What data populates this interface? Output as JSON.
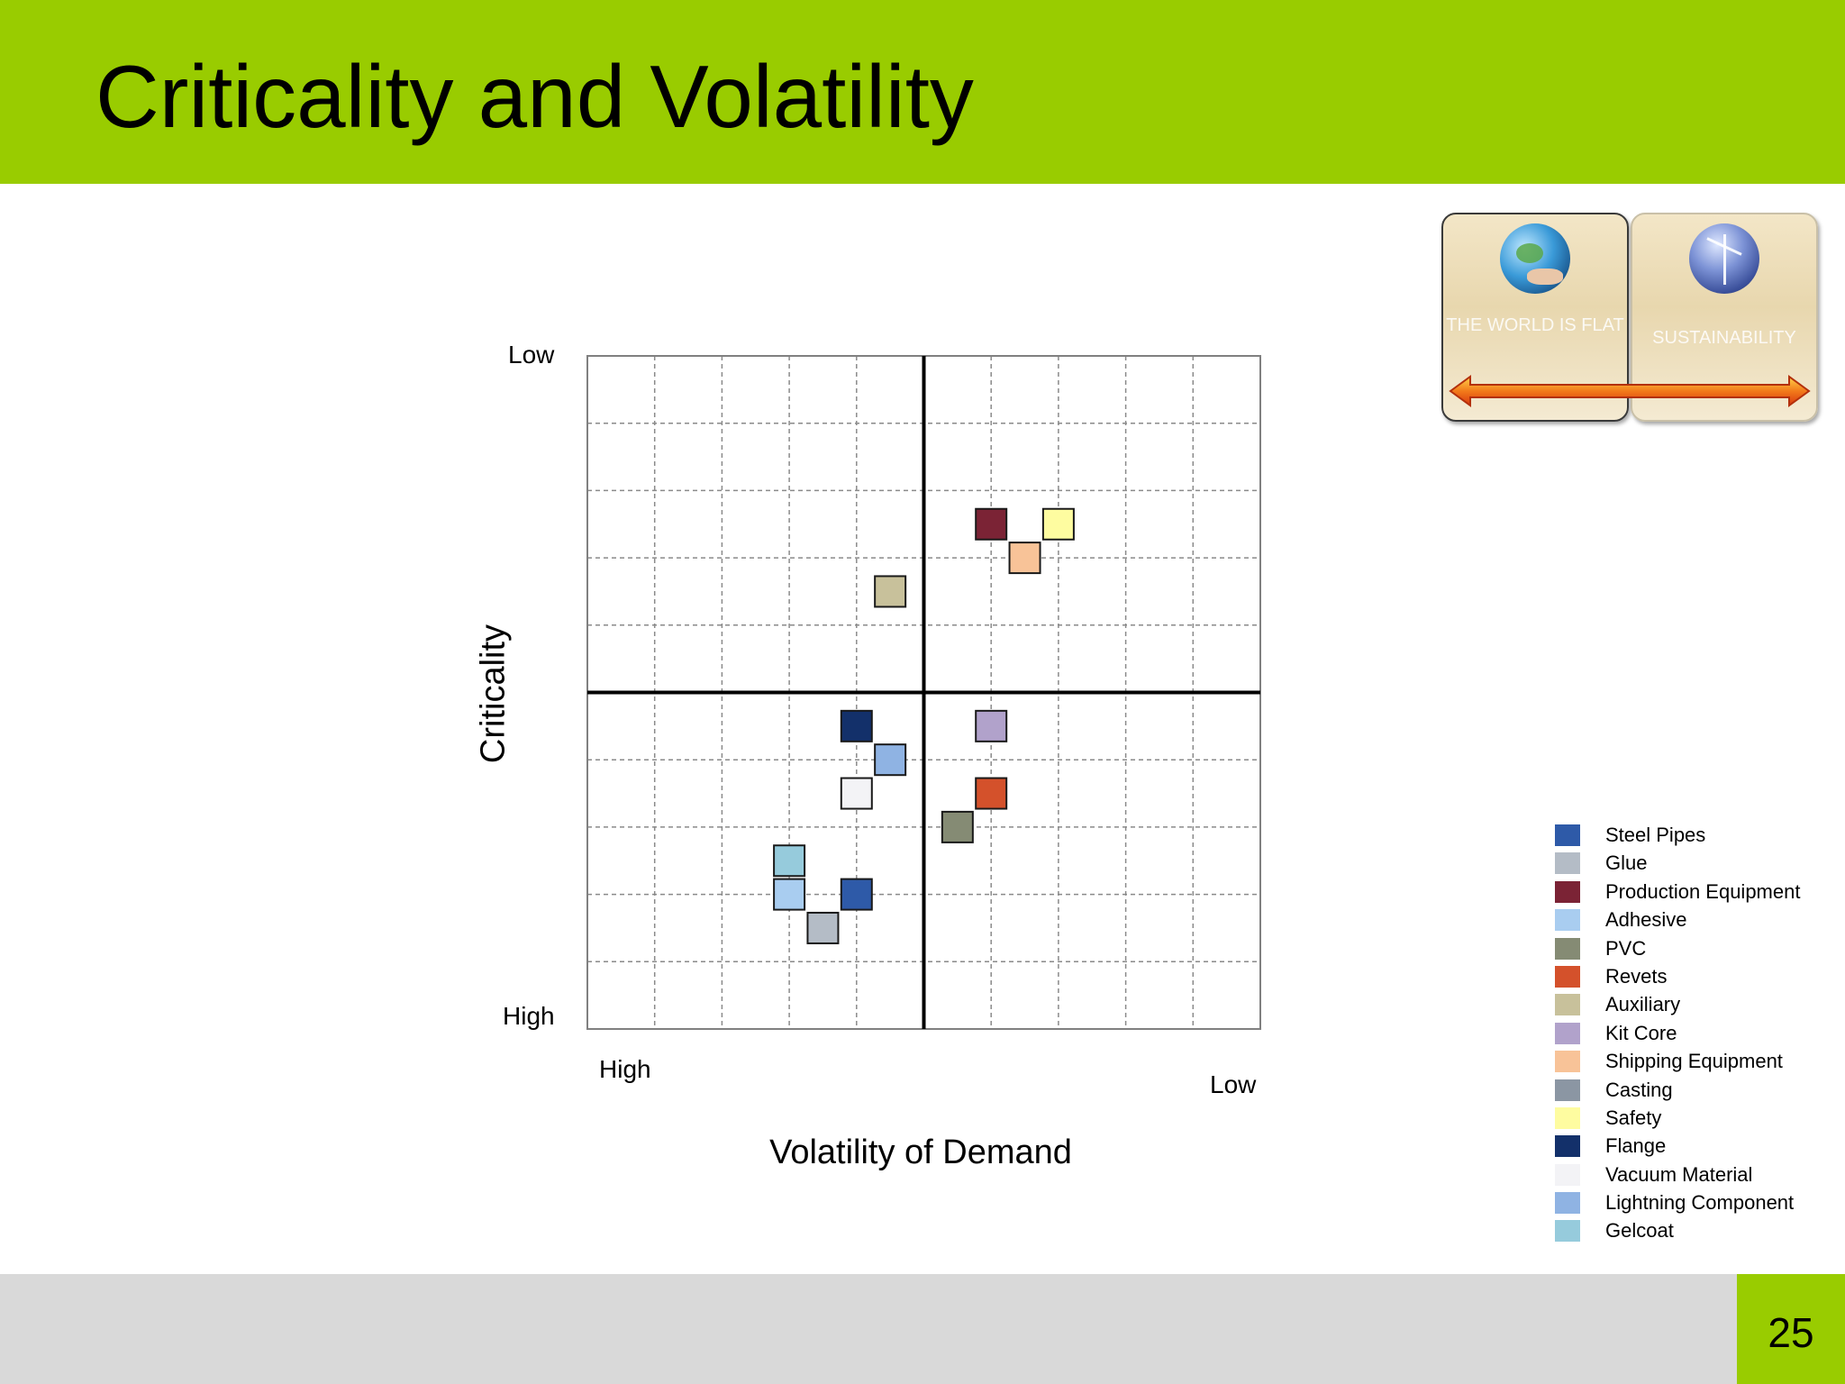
{
  "header": {
    "title": "Criticality and Volatility"
  },
  "footer": {
    "page_number": "25"
  },
  "badge": {
    "left_label": "THE WORLD IS FLAT",
    "right_label": "SUSTAINABILITY",
    "left_icon": "globe-hand-icon",
    "right_icon": "wind-turbine-globe-icon"
  },
  "chart_data": {
    "type": "scatter",
    "title": "",
    "xlabel": "Volatility of Demand",
    "ylabel": "Criticality",
    "x_tick_labels": {
      "left": "High",
      "right": "Low"
    },
    "y_tick_labels": {
      "top": "Low",
      "bottom": "High"
    },
    "xlim": [
      0,
      10
    ],
    "ylim": [
      0,
      10
    ],
    "grid": true,
    "quadrant_lines": {
      "x": 5,
      "y": 5
    },
    "legend_position": "right",
    "series": [
      {
        "name": "Steel Pipes",
        "color": "#2e5aa8",
        "x": 4.0,
        "y": 2.0
      },
      {
        "name": "Glue",
        "color": "#b4bcc6",
        "x": 3.5,
        "y": 1.5
      },
      {
        "name": "Production Equipment",
        "color": "#7b2335",
        "x": 6.0,
        "y": 7.5
      },
      {
        "name": "Adhesive",
        "color": "#a9cdf0",
        "x": 3.0,
        "y": 2.0
      },
      {
        "name": "PVC",
        "color": "#858b74",
        "x": 5.5,
        "y": 3.0
      },
      {
        "name": "Revets",
        "color": "#d4512b",
        "x": 6.0,
        "y": 3.5
      },
      {
        "name": "Auxiliary",
        "color": "#c8c19b",
        "x": 4.5,
        "y": 6.5
      },
      {
        "name": "Kit Core",
        "color": "#b1a2cb",
        "x": 6.0,
        "y": 4.5
      },
      {
        "name": "Shipping  Equipment",
        "color": "#f8c398",
        "x": 6.5,
        "y": 7.0
      },
      {
        "name": "Casting",
        "color": "#8b96a3",
        "x": null,
        "y": null
      },
      {
        "name": "Safety",
        "color": "#fefca0",
        "x": 7.0,
        "y": 7.5
      },
      {
        "name": "Flange",
        "color": "#13306a",
        "x": 4.0,
        "y": 4.5
      },
      {
        "name": "Vacuum Material",
        "color": "#f3f3f6",
        "x": 4.0,
        "y": 3.5
      },
      {
        "name": "Lightning Component",
        "color": "#8fb3e3",
        "x": 4.5,
        "y": 4.0
      },
      {
        "name": "Gelcoat",
        "color": "#96cbdc",
        "x": 3.0,
        "y": 2.5
      }
    ]
  }
}
